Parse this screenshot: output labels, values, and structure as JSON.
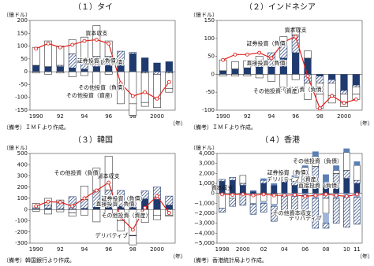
{
  "chart_data": [
    {
      "type": "bar",
      "title": "（１）タイ",
      "unit_label": "（億ドル）",
      "x_label": "（年）",
      "note": "（備考）ＩＭＦより作成。",
      "categories": [
        "1990",
        null,
        "92",
        null,
        "94",
        null,
        "96",
        null,
        "98",
        null,
        "2000",
        null
      ],
      "ylim": [
        -150,
        200
      ],
      "yticks": [
        -150,
        -100,
        -50,
        0,
        50,
        100,
        150,
        200
      ],
      "series": [
        {
          "name": "直接投資（負債）",
          "color": "#1f3a6e",
          "style": "solid",
          "values": [
            25,
            20,
            20,
            15,
            10,
            20,
            25,
            35,
            70,
            55,
            35,
            40
          ]
        },
        {
          "name": "証券投資（負債）",
          "color": "#1f3a6e",
          "style": "hatch",
          "values": [
            0,
            0,
            5,
            55,
            25,
            40,
            35,
            45,
            5,
            -5,
            -10,
            -5
          ]
        },
        {
          "name": "その他投資（負債）",
          "color": "#333333",
          "style": "outline",
          "values": [
            70,
            100,
            75,
            55,
            100,
            120,
            60,
            -60,
            -125,
            -115,
            -95,
            -60
          ]
        },
        {
          "name": "その他投資（資産）",
          "color": "#333333",
          "style": "outline",
          "values": [
            -5,
            -10,
            -5,
            -20,
            -15,
            -55,
            -10,
            -65,
            -45,
            -15,
            -35,
            -15
          ]
        },
        {
          "name": "資本収支",
          "type": "line",
          "color": "#e0201b",
          "values": [
            90,
            110,
            95,
            105,
            120,
            125,
            110,
            -45,
            -95,
            -80,
            -105,
            -40
          ]
        }
      ]
    },
    {
      "type": "bar",
      "title": "（２）インドネシア",
      "unit_label": "（億ドル）",
      "x_label": "（年）",
      "note": "（備考）ＩＭＦより作成。",
      "categories": [
        "1990",
        null,
        "92",
        null,
        "94",
        null,
        "96",
        null,
        "98",
        null,
        "2000",
        null
      ],
      "ylim": [
        -100,
        150
      ],
      "yticks": [
        -100,
        -50,
        0,
        50,
        100,
        150
      ],
      "series": [
        {
          "name": "直接投資（負債）",
          "color": "#1f3a6e",
          "style": "solid",
          "values": [
            10,
            15,
            18,
            20,
            20,
            45,
            60,
            45,
            -5,
            -15,
            -45,
            -30
          ]
        },
        {
          "name": "証券投資（負債）",
          "color": "#1f3a6e",
          "style": "hatch",
          "values": [
            0,
            0,
            0,
            20,
            40,
            40,
            50,
            -25,
            -20,
            -10,
            -10,
            -5
          ]
        },
        {
          "name": "その他投資（負債）",
          "color": "#333333",
          "style": "outline",
          "values": [
            30,
            20,
            20,
            10,
            0,
            20,
            20,
            20,
            -30,
            -35,
            -25,
            -20
          ]
        },
        {
          "name": "その他投資（資産）",
          "color": "#333333",
          "style": "outline",
          "values": [
            -5,
            -5,
            -5,
            -10,
            -20,
            -35,
            -15,
            -45,
            -40,
            -20,
            -10,
            -15
          ]
        },
        {
          "name": "資本収支",
          "type": "line",
          "color": "#e0201b",
          "values": [
            40,
            55,
            55,
            60,
            45,
            90,
            105,
            -5,
            -95,
            -60,
            -80,
            -70
          ]
        }
      ]
    },
    {
      "type": "bar",
      "title": "（３）韓国",
      "unit_label": "（億ドル）",
      "x_label": "（年）",
      "note": "（備考）韓国銀行より作成。",
      "categories": [
        "1990",
        null,
        "92",
        null,
        "94",
        null,
        "96",
        null,
        "98",
        null,
        "2000",
        null
      ],
      "ylim": [
        -300,
        500
      ],
      "yticks": [
        -300,
        -200,
        -100,
        0,
        100,
        200,
        300,
        400,
        500
      ],
      "series": [
        {
          "name": "直接投資（負債）",
          "color": "#1f3a6e",
          "style": "solid",
          "values": [
            5,
            10,
            5,
            5,
            10,
            20,
            25,
            30,
            55,
            95,
            90,
            40
          ]
        },
        {
          "name": "証券投資（負債）",
          "color": "#1f3a6e",
          "style": "hatch",
          "values": [
            10,
            30,
            60,
            110,
            80,
            150,
            150,
            140,
            20,
            70,
            110,
            80
          ]
        },
        {
          "name": "その他投資（負債）",
          "color": "#333333",
          "style": "outline",
          "values": [
            40,
            60,
            20,
            -30,
            120,
            200,
            300,
            -100,
            -230,
            -40,
            -50,
            -50
          ]
        },
        {
          "name": "デリバティブ",
          "color": "#1f3a6e",
          "style": "solid",
          "values": [
            0,
            0,
            0,
            0,
            0,
            0,
            0,
            0,
            -5,
            -5,
            0,
            0
          ]
        },
        {
          "name": "その他投資（資産）",
          "color": "#333333",
          "style": "outline",
          "values": [
            -15,
            -40,
            -20,
            -30,
            -50,
            -110,
            -70,
            -90,
            -80,
            -70,
            -40,
            -10
          ]
        },
        {
          "name": "資本収支",
          "type": "line",
          "color": "#e0201b",
          "values": [
            30,
            70,
            65,
            30,
            100,
            170,
            240,
            -70,
            -180,
            15,
            120,
            -30
          ]
        }
      ]
    },
    {
      "type": "bar",
      "title": "（４）香港",
      "unit_label": "（億ドル）",
      "x_label": "（年）",
      "note": "（備考）香港統計局より作成。",
      "categories": [
        "1998",
        null,
        "2000",
        null,
        "02",
        null,
        "04",
        null,
        "06",
        null,
        "08",
        null,
        "10",
        "11"
      ],
      "ylim": [
        -5000,
        4000
      ],
      "yticks": [
        {
          "value": -5000,
          "label": "−5,000"
        },
        {
          "value": -4000,
          "label": "−4,000"
        },
        {
          "value": -3000,
          "label": "−3,000"
        },
        {
          "value": -2000,
          "label": "−2,000"
        },
        {
          "value": -1000,
          "label": "−1,000"
        },
        0,
        {
          "value": 1000,
          "label": "1,000"
        },
        {
          "value": 2000,
          "label": "2,000"
        },
        {
          "value": 3000,
          "label": "3,000"
        },
        {
          "value": 4000,
          "label": "4,000"
        }
      ],
      "series": [
        {
          "name": "直接投資（負債）",
          "color": "#1f3a6e",
          "style": "solid",
          "values": [
            1200,
            1300,
            800,
            200,
            1000,
            800,
            1200,
            800,
            1000,
            1400,
            900,
            1000,
            1500,
            1000
          ]
        },
        {
          "name": "証券投資（負債）",
          "color": "#1f3a6e",
          "style": "hatch",
          "values": [
            200,
            300,
            200,
            -200,
            300,
            -100,
            200,
            400,
            1000,
            1300,
            -500,
            1000,
            800,
            300
          ]
        },
        {
          "name": "その他投資（負債）",
          "color": "#333333",
          "style": "outline",
          "values": [
            -1500,
            -500,
            800,
            -800,
            -800,
            -1000,
            500,
            300,
            600,
            1000,
            -1500,
            300,
            1800,
            1500
          ]
        },
        {
          "name": "デリバティブ（資産）",
          "color": "#5b7fb5",
          "style": "solid",
          "values": [
            0,
            0,
            0,
            100,
            200,
            200,
            300,
            300,
            200,
            500,
            1000,
            500,
            400,
            400
          ]
        },
        {
          "name": "デリバティブ",
          "color": "#9fb6d8",
          "style": "solid",
          "values": [
            0,
            0,
            0,
            -100,
            -200,
            -200,
            -300,
            -300,
            -200,
            -500,
            -1000,
            -500,
            -400,
            -400
          ]
        },
        {
          "name": "その他資本収支",
          "color": "#1f3a6e",
          "style": "hatch",
          "values": [
            -400,
            -800,
            -1200,
            -1000,
            -900,
            -1500,
            -1800,
            -1700,
            -2000,
            -3000,
            -500,
            -2500,
            -3000,
            -2700
          ]
        },
        {
          "name": "資本収支",
          "type": "line",
          "color": "#e0201b",
          "values": [
            -100,
            -150,
            -100,
            -200,
            -100,
            -200,
            -200,
            -150,
            -300,
            -200,
            -100,
            -200,
            -300,
            -100
          ]
        }
      ]
    }
  ]
}
